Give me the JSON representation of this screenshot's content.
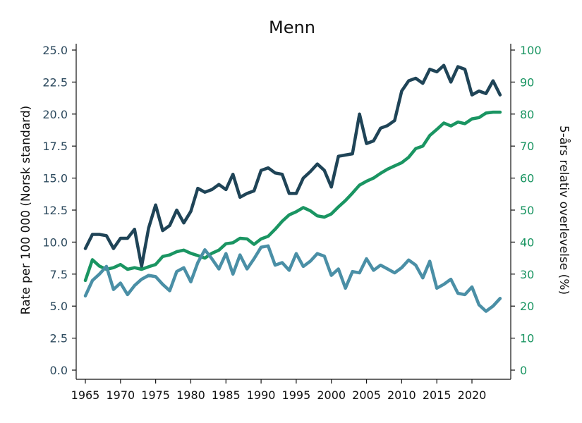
{
  "chart_data": {
    "type": "line",
    "title": "Menn",
    "ylabel_left": "Rate per 100 000 (Norsk standard)",
    "ylabel_right": "5-års relativ overlevelse (%)",
    "ylim_left": [
      0,
      25
    ],
    "ylim_right": [
      0,
      100
    ],
    "xlim": [
      1964,
      2025
    ],
    "yticks_left": [
      "0.0",
      "2.5",
      "5.0",
      "7.5",
      "10.0",
      "12.5",
      "15.0",
      "17.5",
      "20.0",
      "22.5",
      "25.0"
    ],
    "yticks_right": [
      "0",
      "10",
      "20",
      "30",
      "40",
      "50",
      "60",
      "70",
      "80",
      "90",
      "100"
    ],
    "xticks": [
      "1965",
      "1970",
      "1975",
      "1980",
      "1985",
      "1990",
      "1995",
      "2000",
      "2005",
      "2010",
      "2015",
      "2020"
    ],
    "grid": false,
    "legend": "none",
    "series": [
      {
        "axis": "left",
        "color": "#1f4457",
        "x": [
          1965,
          1966,
          1967,
          1968,
          1969,
          1970,
          1971,
          1972,
          1973,
          1974,
          1975,
          1976,
          1977,
          1978,
          1979,
          1980,
          1981,
          1982,
          1983,
          1984,
          1985,
          1986,
          1987,
          1988,
          1989,
          1990,
          1991,
          1992,
          1993,
          1994,
          1995,
          1996,
          1997,
          1998,
          1999,
          2000,
          2001,
          2002,
          2003,
          2004,
          2005,
          2006,
          2007,
          2008,
          2009,
          2010,
          2011,
          2012,
          2013,
          2014,
          2015,
          2016,
          2017,
          2018,
          2019,
          2020,
          2021,
          2022,
          2023,
          2024
        ],
        "y": [
          9.5,
          10.6,
          10.6,
          10.5,
          9.5,
          10.3,
          10.3,
          11.0,
          8.1,
          11.1,
          12.9,
          10.9,
          11.3,
          12.5,
          11.5,
          12.4,
          14.2,
          13.9,
          14.1,
          14.5,
          14.1,
          15.3,
          13.5,
          13.8,
          14.0,
          15.6,
          15.8,
          15.4,
          15.3,
          13.8,
          13.8,
          15.0,
          15.5,
          16.1,
          15.6,
          14.3,
          16.7,
          16.8,
          16.9,
          20.0,
          17.7,
          17.9,
          18.9,
          19.1,
          19.5,
          21.8,
          22.6,
          22.8,
          22.4,
          23.5,
          23.3,
          23.8,
          22.5,
          23.7,
          23.5,
          21.5,
          21.8,
          21.6,
          22.6,
          21.5
        ]
      },
      {
        "axis": "right",
        "color": "#1a9562",
        "x": [
          1965,
          1966,
          1967,
          1968,
          1969,
          1970,
          1971,
          1972,
          1973,
          1974,
          1975,
          1976,
          1977,
          1978,
          1979,
          1980,
          1981,
          1982,
          1983,
          1984,
          1985,
          1986,
          1987,
          1988,
          1989,
          1990,
          1991,
          1992,
          1993,
          1994,
          1995,
          1996,
          1997,
          1998,
          1999,
          2000,
          2001,
          2002,
          2003,
          2004,
          2005,
          2006,
          2007,
          2008,
          2009,
          2010,
          2011,
          2012,
          2013,
          2014,
          2015,
          2016,
          2017,
          2018,
          2019,
          2020,
          2021,
          2022,
          2023,
          2024
        ],
        "y": [
          28,
          34.5,
          32.5,
          31.5,
          32,
          33,
          31.5,
          32,
          31.5,
          32.3,
          33,
          35.5,
          36,
          37,
          37.5,
          36.5,
          35.8,
          35,
          36.5,
          37.5,
          39.5,
          39.8,
          41.2,
          41,
          39.3,
          41,
          41.8,
          44,
          46.5,
          48.5,
          49.5,
          50.8,
          49.8,
          48.2,
          47.8,
          48.8,
          51,
          53,
          55.3,
          57.8,
          59,
          60,
          61.5,
          62.8,
          63.8,
          64.8,
          66.5,
          69.2,
          70,
          73.3,
          75.2,
          77.2,
          76.3,
          77.5,
          77,
          78.5,
          78.9,
          80.3,
          80.6,
          80.6
        ]
      },
      {
        "axis": "left",
        "color": "#4a8fa6",
        "x": [
          1965,
          1966,
          1967,
          1968,
          1969,
          1970,
          1971,
          1972,
          1973,
          1974,
          1975,
          1976,
          1977,
          1978,
          1979,
          1980,
          1981,
          1982,
          1983,
          1984,
          1985,
          1986,
          1987,
          1988,
          1989,
          1990,
          1991,
          1992,
          1993,
          1994,
          1995,
          1996,
          1997,
          1998,
          1999,
          2000,
          2001,
          2002,
          2003,
          2004,
          2005,
          2006,
          2007,
          2008,
          2009,
          2010,
          2011,
          2012,
          2013,
          2014,
          2015,
          2016,
          2017,
          2018,
          2019,
          2020,
          2021,
          2022,
          2023,
          2024
        ],
        "y": [
          5.8,
          7.0,
          7.5,
          8.1,
          6.3,
          6.8,
          5.9,
          6.6,
          7.1,
          7.4,
          7.3,
          6.7,
          6.2,
          7.7,
          8.0,
          6.9,
          8.4,
          9.4,
          8.7,
          7.9,
          9.1,
          7.5,
          9.0,
          7.9,
          8.7,
          9.6,
          9.7,
          8.2,
          8.4,
          7.8,
          9.1,
          8.1,
          8.5,
          9.1,
          8.9,
          7.4,
          7.9,
          6.4,
          7.7,
          7.6,
          8.7,
          7.8,
          8.2,
          7.9,
          7.6,
          8.0,
          8.6,
          8.2,
          7.2,
          8.5,
          6.4,
          6.7,
          7.1,
          6.0,
          5.9,
          6.5,
          5.1,
          4.6,
          5.0,
          5.6
        ]
      }
    ]
  }
}
